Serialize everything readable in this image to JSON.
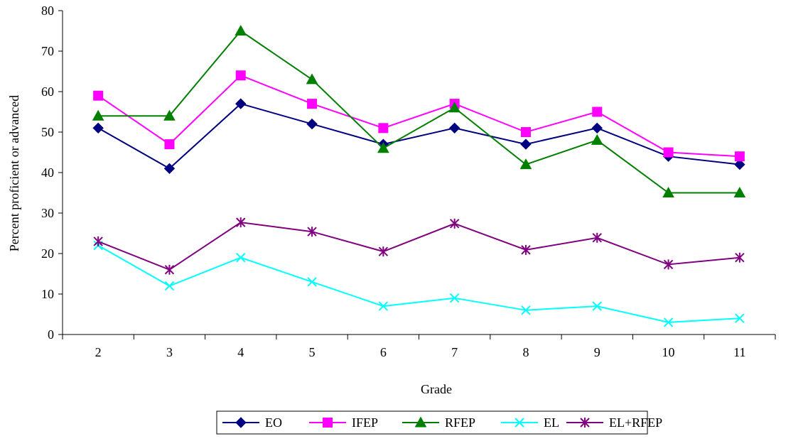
{
  "chart_data": {
    "type": "line",
    "title": "",
    "xlabel": "Grade",
    "ylabel": "Percent proficient or advanced",
    "categories": [
      "2",
      "3",
      "4",
      "5",
      "6",
      "7",
      "8",
      "9",
      "10",
      "11"
    ],
    "ylim": [
      0,
      80
    ],
    "yticks": [
      "0",
      "10",
      "20",
      "30",
      "40",
      "50",
      "60",
      "70",
      "80"
    ],
    "grid": false,
    "legend_position": "bottom",
    "series": [
      {
        "name": "EO",
        "color": "#000080",
        "marker": "diamond",
        "values": [
          51,
          41,
          57,
          52,
          47,
          51,
          47,
          51,
          44,
          42
        ]
      },
      {
        "name": "IFEP",
        "color": "#FF00FF",
        "marker": "square",
        "values": [
          59,
          47,
          64,
          57,
          51,
          57,
          50,
          55,
          45,
          44
        ]
      },
      {
        "name": "RFEP",
        "color": "#008000",
        "marker": "triangle",
        "values": [
          54,
          54,
          75,
          63,
          46,
          56,
          42,
          48,
          35,
          35
        ]
      },
      {
        "name": "EL",
        "color": "#00FFFF",
        "marker": "x",
        "values": [
          22,
          12,
          19,
          13,
          7,
          9,
          6,
          7,
          3,
          4
        ]
      },
      {
        "name": "EL+RFEP",
        "color": "#800080",
        "marker": "asterisk",
        "values": [
          23,
          16,
          27.7,
          25.4,
          20.5,
          27.4,
          20.9,
          23.9,
          17.3,
          19
        ]
      }
    ]
  }
}
